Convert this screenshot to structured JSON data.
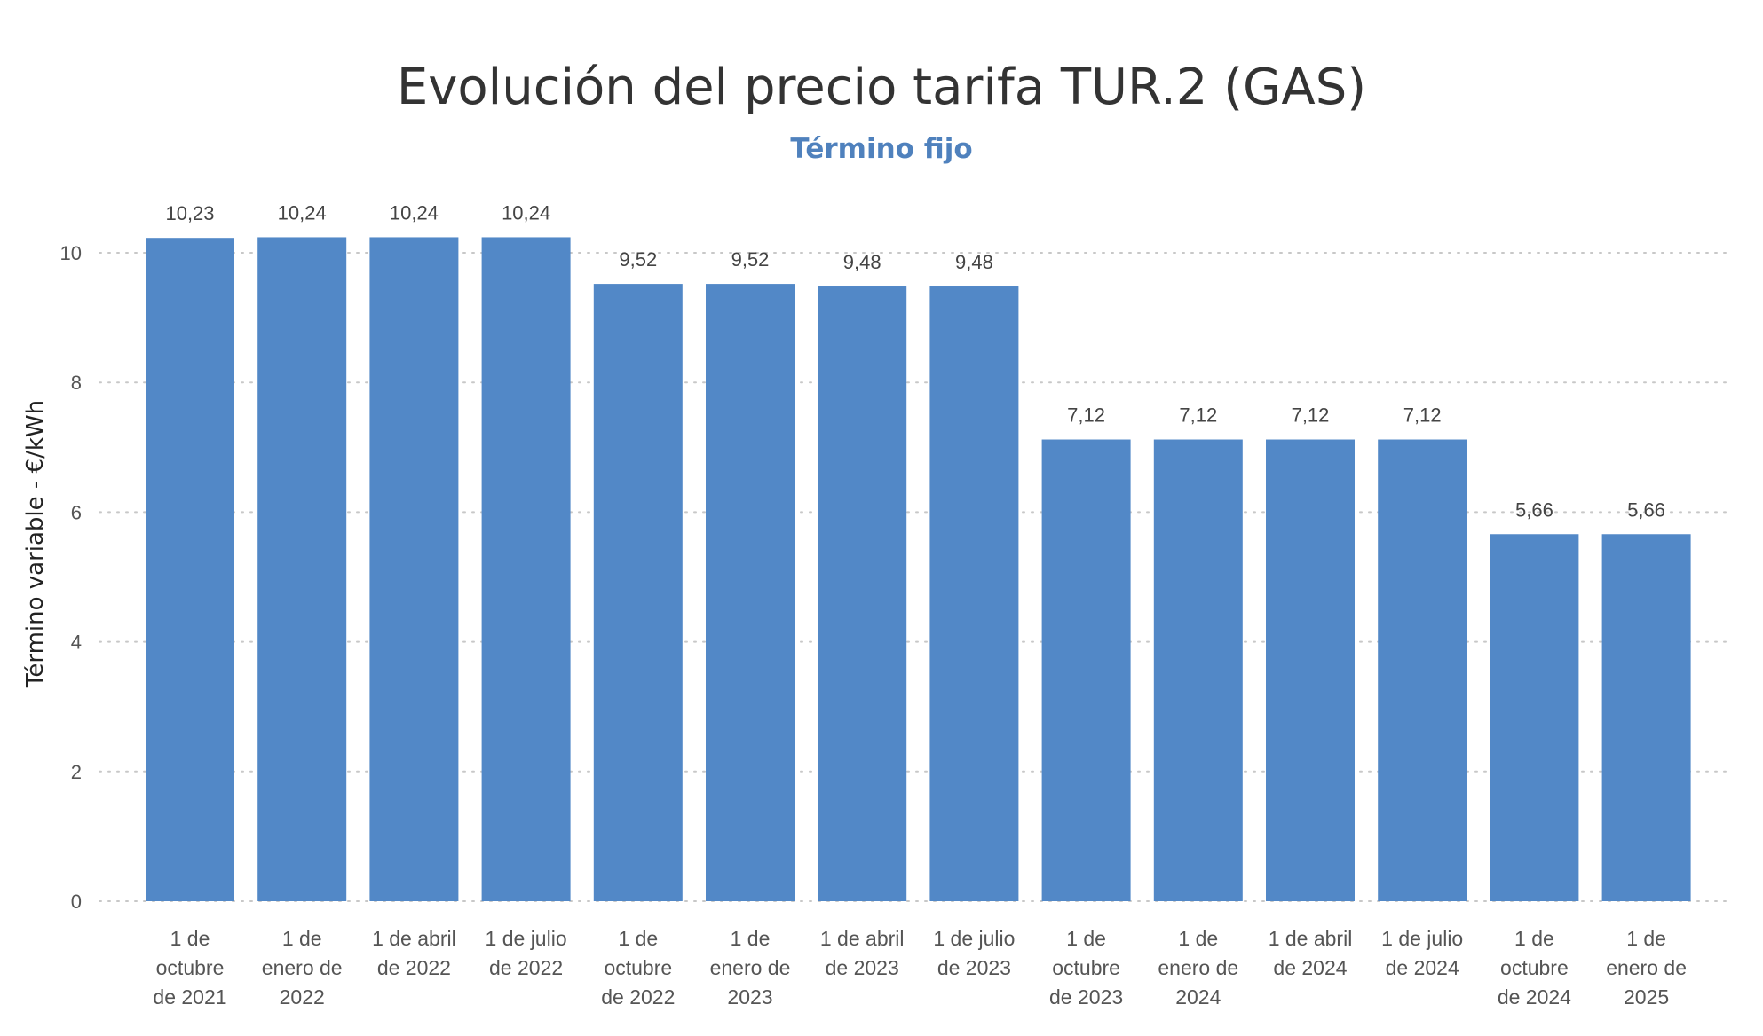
{
  "chart_data": {
    "type": "bar",
    "title": "Evolución del precio tarifa TUR.2 (GAS)",
    "subtitle": "Término fijo",
    "xlabel": "",
    "ylabel": "Término variable - €/kWh",
    "ylim": [
      0,
      10.5
    ],
    "yticks": [
      0,
      2,
      4,
      6,
      8,
      10
    ],
    "grid": true,
    "categories": [
      [
        "1 de",
        "octubre",
        "de 2021"
      ],
      [
        "1 de",
        "enero de",
        "2022"
      ],
      [
        "1 de abril",
        "de 2022"
      ],
      [
        "1 de julio",
        "de 2022"
      ],
      [
        "1 de",
        "octubre",
        "de 2022"
      ],
      [
        "1 de",
        "enero de",
        "2023"
      ],
      [
        "1 de abril",
        "de 2023"
      ],
      [
        "1 de julio",
        "de 2023"
      ],
      [
        "1 de",
        "octubre",
        "de 2023"
      ],
      [
        "1 de",
        "enero de",
        "2024"
      ],
      [
        "1 de abril",
        "de 2024"
      ],
      [
        "1 de julio",
        "de 2024"
      ],
      [
        "1 de",
        "octubre",
        "de 2024"
      ],
      [
        "1 de",
        "enero de",
        "2025"
      ]
    ],
    "values": [
      10.23,
      10.24,
      10.24,
      10.24,
      9.52,
      9.52,
      9.48,
      9.48,
      7.12,
      7.12,
      7.12,
      7.12,
      5.66,
      5.66
    ],
    "data_labels": [
      "10,23",
      "10,24",
      "10,24",
      "10,24",
      "9,52",
      "9,52",
      "9,48",
      "9,48",
      "7,12",
      "7,12",
      "7,12",
      "7,12",
      "5,66",
      "5,66"
    ],
    "bar_color": "#5288c7",
    "grid_color": "#c8c8c8"
  }
}
